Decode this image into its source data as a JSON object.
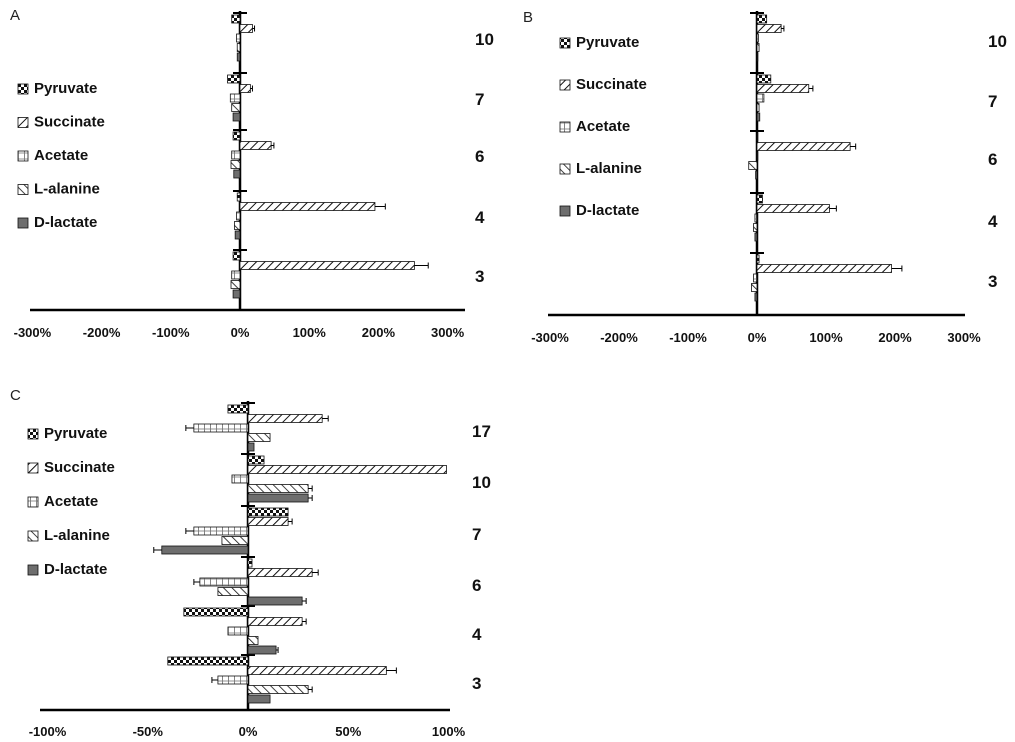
{
  "chart_data": [
    {
      "panel": "A",
      "type": "bar",
      "orientation": "horizontal",
      "x_ticks": [
        "-300%",
        "-200%",
        "-100%",
        "0%",
        "100%",
        "200%",
        "300%"
      ],
      "xlim": [
        -300,
        300
      ],
      "categories": [
        "10",
        "7",
        "6",
        "4",
        "3"
      ],
      "series": [
        {
          "name": "Pyruvate",
          "pattern": "checker",
          "values": [
            -12,
            -18,
            -10,
            -4,
            -10
          ],
          "errors": [
            0,
            0,
            0,
            0,
            0
          ]
        },
        {
          "name": "Succinate",
          "pattern": "diagonal",
          "values": [
            18,
            15,
            45,
            195,
            252
          ],
          "errors": [
            3,
            3,
            4,
            15,
            20
          ]
        },
        {
          "name": "Acetate",
          "pattern": "hash",
          "values": [
            -5,
            -14,
            -12,
            -5,
            -12
          ],
          "errors": [
            0,
            0,
            0,
            0,
            0
          ]
        },
        {
          "name": "L-alanine",
          "pattern": "backslash",
          "values": [
            -4,
            -12,
            -13,
            -8,
            -13
          ],
          "errors": [
            0,
            0,
            0,
            0,
            0
          ]
        },
        {
          "name": "D-lactate",
          "pattern": "solid",
          "values": [
            -4,
            -10,
            -9,
            -7,
            -10
          ],
          "errors": [
            0,
            0,
            0,
            0,
            0
          ]
        }
      ],
      "legend_position": "left",
      "grid": false
    },
    {
      "panel": "B",
      "type": "bar",
      "orientation": "horizontal",
      "x_ticks": [
        "-300%",
        "-200%",
        "-100%",
        "0%",
        "100%",
        "200%",
        "300%"
      ],
      "xlim": [
        -300,
        300
      ],
      "categories": [
        "10",
        "7",
        "6",
        "4",
        "3"
      ],
      "series": [
        {
          "name": "Pyruvate",
          "pattern": "checker",
          "values": [
            14,
            20,
            0,
            8,
            3
          ],
          "errors": [
            0,
            0,
            0,
            0,
            0
          ]
        },
        {
          "name": "Succinate",
          "pattern": "diagonal",
          "values": [
            35,
            75,
            135,
            105,
            195
          ],
          "errors": [
            4,
            6,
            8,
            10,
            15
          ]
        },
        {
          "name": "Acetate",
          "pattern": "hash",
          "values": [
            2,
            10,
            0,
            -3,
            -5
          ],
          "errors": [
            0,
            0,
            0,
            0,
            0
          ]
        },
        {
          "name": "L-alanine",
          "pattern": "backslash",
          "values": [
            3,
            3,
            -12,
            -5,
            -8
          ],
          "errors": [
            0,
            0,
            0,
            0,
            0
          ]
        },
        {
          "name": "D-lactate",
          "pattern": "solid",
          "values": [
            0,
            4,
            -2,
            -3,
            -3
          ],
          "errors": [
            0,
            0,
            0,
            0,
            0
          ]
        }
      ],
      "legend_position": "left",
      "grid": false
    },
    {
      "panel": "C",
      "type": "bar",
      "orientation": "horizontal",
      "x_ticks": [
        "-100%",
        "-50%",
        "0%",
        "50%",
        "100%"
      ],
      "xlim": [
        -100,
        100
      ],
      "categories": [
        "17",
        "10",
        "7",
        "6",
        "4",
        "3"
      ],
      "series": [
        {
          "name": "Pyruvate",
          "pattern": "checker",
          "values": [
            -10,
            8,
            20,
            2,
            -32,
            -40
          ],
          "errors": [
            0,
            0,
            0,
            0,
            0,
            0
          ]
        },
        {
          "name": "Succinate",
          "pattern": "diagonal",
          "values": [
            37,
            99,
            20,
            32,
            27,
            69
          ],
          "errors": [
            3,
            0,
            2,
            3,
            2,
            5
          ]
        },
        {
          "name": "Acetate",
          "pattern": "hash",
          "values": [
            -27,
            -8,
            -27,
            -24,
            -10,
            -15
          ],
          "errors": [
            4,
            0,
            4,
            3,
            0,
            3
          ]
        },
        {
          "name": "L-alanine",
          "pattern": "backslash",
          "values": [
            11,
            30,
            -13,
            -15,
            5,
            30
          ],
          "errors": [
            0,
            2,
            0,
            0,
            0,
            2
          ]
        },
        {
          "name": "D-lactate",
          "pattern": "solid",
          "values": [
            3,
            30,
            -43,
            27,
            14,
            11
          ],
          "errors": [
            0,
            2,
            4,
            2,
            1,
            0
          ]
        }
      ],
      "legend_position": "left",
      "grid": false
    }
  ],
  "legend_names": [
    "Pyruvate",
    "Succinate",
    "Acetate",
    "L-alanine",
    "D-lactate"
  ]
}
